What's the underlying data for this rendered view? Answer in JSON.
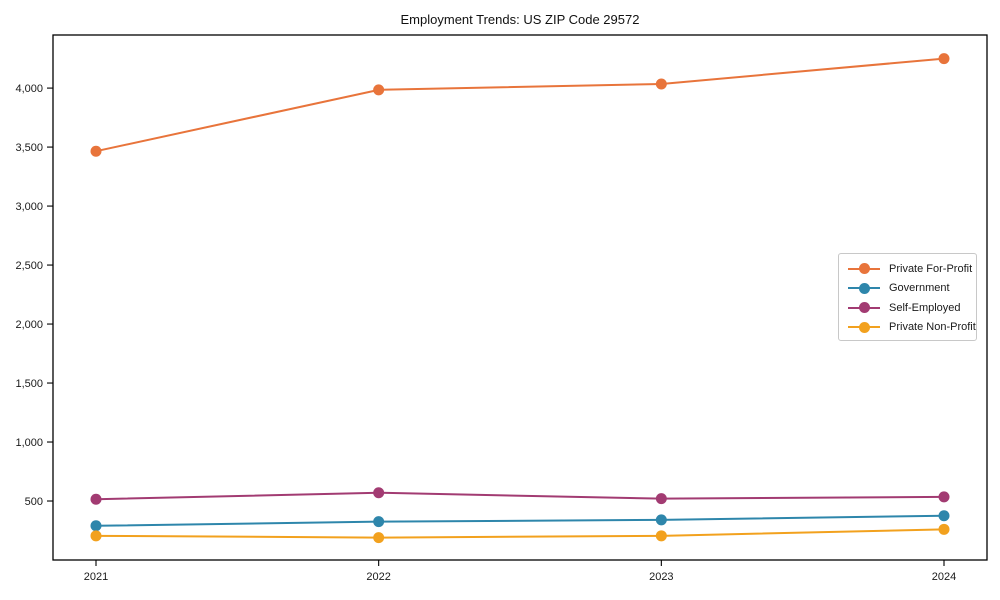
{
  "chart_data": {
    "type": "line",
    "title": "Employment Trends: US ZIP Code 29572",
    "categories": [
      "2021",
      "2022",
      "2023",
      "2024"
    ],
    "series": [
      {
        "name": "Private For-Profit",
        "color": "#E8743B",
        "values": [
          3465,
          3985,
          4035,
          4250
        ]
      },
      {
        "name": "Government",
        "color": "#2E86AB",
        "values": [
          290,
          325,
          340,
          375
        ]
      },
      {
        "name": "Self-Employed",
        "color": "#A23B72",
        "values": [
          515,
          570,
          520,
          535
        ]
      },
      {
        "name": "Private Non-Profit",
        "color": "#F2A11E",
        "values": [
          205,
          190,
          205,
          260
        ]
      }
    ],
    "xlabel": "",
    "ylabel": "",
    "ylim": [
      0,
      4450
    ],
    "yticks": [
      500,
      1000,
      1500,
      2000,
      2500,
      3000,
      3500,
      4000
    ],
    "ytick_labels": [
      "500",
      "1,000",
      "1,500",
      "2,000",
      "2,500",
      "3,000",
      "3,500",
      "4,000"
    ],
    "grid": false,
    "legend_position": "center-right",
    "axis_color": "#000000",
    "tick_label_color": "#1a1a1a",
    "background_color": "#ffffff"
  }
}
